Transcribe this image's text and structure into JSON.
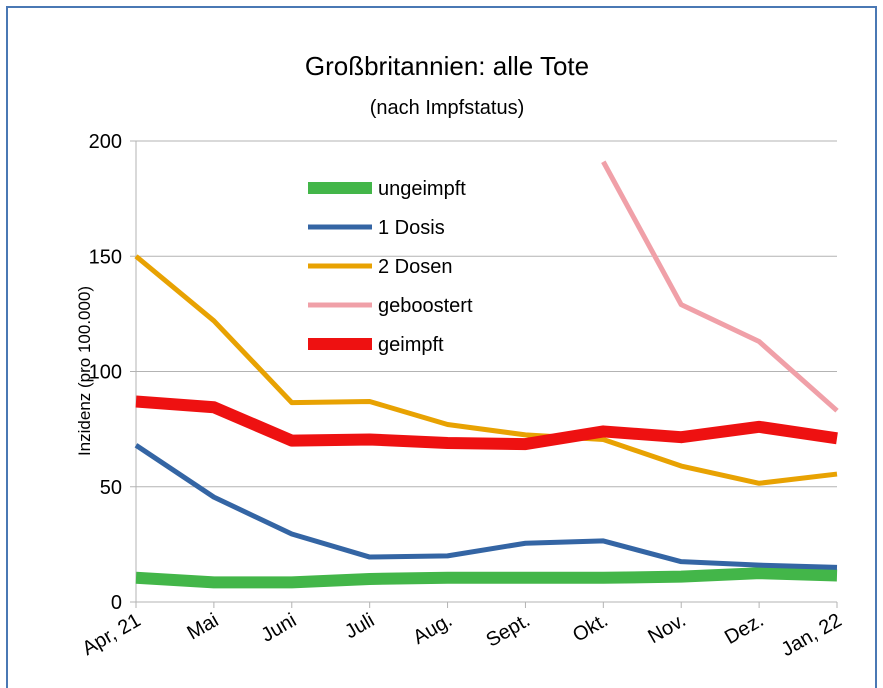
{
  "chart_data": {
    "type": "line",
    "title": "Großbritannien: alle Tote",
    "subtitle": "(nach Impfstatus)",
    "y_label": "Inzidenz (pro 100.000)",
    "categories": [
      "Apr, 21",
      "Mai",
      "Juni",
      "Juli",
      "Aug.",
      "Sept.",
      "Okt.",
      "Nov.",
      "Dez.",
      "Jan, 22"
    ],
    "series": [
      {
        "name": "ungeimpft",
        "color": "#43b649",
        "values": [
          10.5,
          8.5,
          8.5,
          10,
          10.5,
          10.5,
          10.5,
          11,
          12.5,
          11.5
        ]
      },
      {
        "name": "1 Dosis",
        "color": "#3465a4",
        "values": [
          68,
          45.5,
          29.5,
          19.5,
          20,
          25.5,
          26.5,
          17.5,
          16,
          15
        ]
      },
      {
        "name": "2 Dosen",
        "color": "#e8a202",
        "values": [
          150,
          122,
          86.5,
          87,
          77,
          72.5,
          70.5,
          59,
          51.5,
          55.5
        ]
      },
      {
        "name": "geboostert",
        "color": "#f0a0a8",
        "values": [
          null,
          null,
          null,
          null,
          null,
          null,
          191,
          129,
          113,
          83
        ]
      },
      {
        "name": "geimpft",
        "color": "#ee1111",
        "values": [
          87,
          84.5,
          70,
          70.5,
          69,
          68.5,
          74,
          71.5,
          76,
          71
        ]
      }
    ],
    "ylim": [
      0,
      200
    ],
    "yticks": [
      0,
      50,
      100,
      150,
      200
    ],
    "grid": true,
    "legend": "inside-top"
  }
}
